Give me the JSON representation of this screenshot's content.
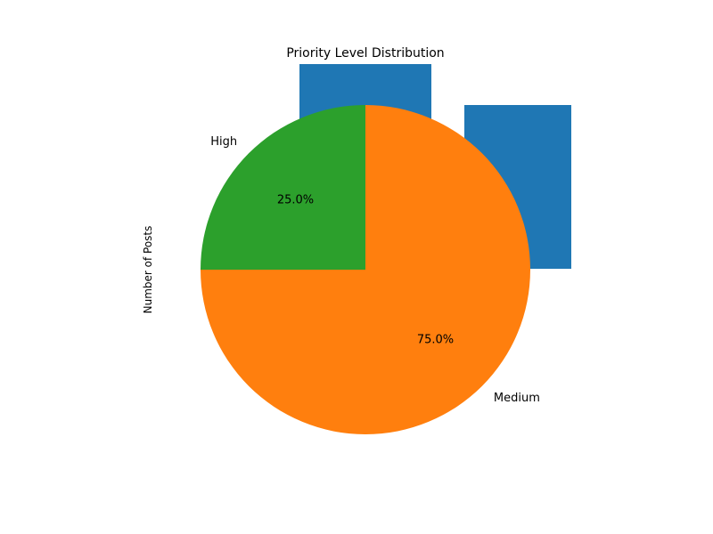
{
  "chart_data": {
    "type": "pie",
    "title": "Priority Level Distribution",
    "ylabel": "Number of Posts",
    "slices": [
      {
        "label": "High",
        "value": 1,
        "pct_label": "25.0%",
        "color": "#2ca02c"
      },
      {
        "label": "Medium",
        "value": 3,
        "pct_label": "75.0%",
        "color": "#ff7f0e"
      }
    ],
    "start_angle_deg": 90,
    "direction": "counterclockwise",
    "background_bars": {
      "color": "#1f77b4",
      "count": 2
    }
  }
}
